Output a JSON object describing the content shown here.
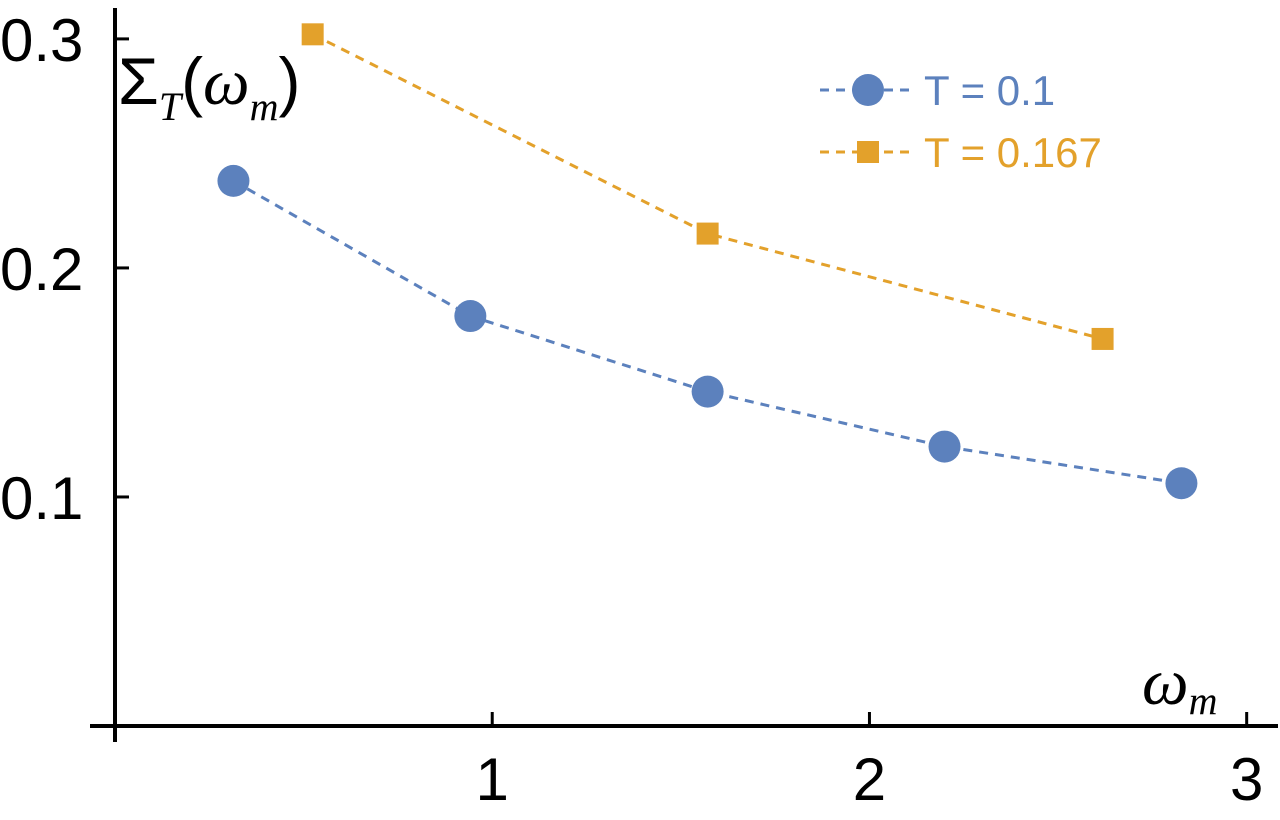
{
  "chart_data": {
    "type": "line",
    "xlabel": "ω",
    "xlabel_sub": "m",
    "ylabel": "Σ",
    "ylabel_sub": "T",
    "ylabel_arg": "ω",
    "ylabel_arg_sub": "m",
    "xlim": [
      0,
      3.03
    ],
    "ylim": [
      0,
      0.31
    ],
    "x_ticks": [
      1,
      2,
      3
    ],
    "x_tick_labels": [
      "1",
      "2",
      "3"
    ],
    "y_ticks": [
      0.1,
      0.2,
      0.3
    ],
    "y_tick_labels": [
      "0.1",
      "0.2",
      "0.3"
    ],
    "grid": false,
    "legend_position": "top-right",
    "series": [
      {
        "name": "T = 0.1",
        "color": "#5c81bd",
        "marker": "circle",
        "line_style": "dashed",
        "x": [
          0.314,
          0.942,
          1.571,
          2.199,
          2.827
        ],
        "y": [
          0.238,
          0.179,
          0.146,
          0.122,
          0.106
        ]
      },
      {
        "name": "T = 0.167",
        "color": "#e3a12b",
        "marker": "square",
        "line_style": "dashed",
        "x": [
          0.524,
          1.571,
          2.618
        ],
        "y": [
          0.302,
          0.215,
          0.169
        ]
      }
    ]
  }
}
